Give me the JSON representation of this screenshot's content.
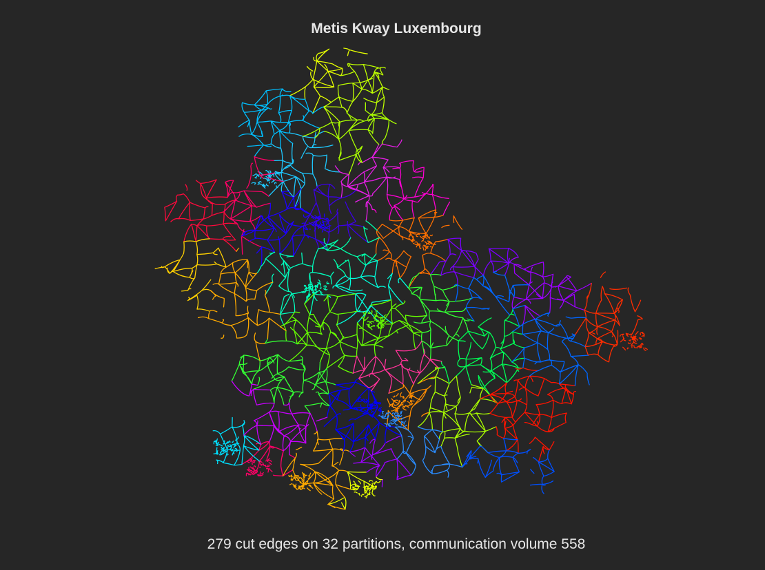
{
  "figure": {
    "title": "Metis Kway Luxembourg",
    "caption": "279 cut edges on 32 partitions, communication volume 558"
  },
  "graph": {
    "type": "road-network-partition",
    "partitions": 32,
    "cut_edges": 279,
    "communication_volume": 558
  },
  "palette": [
    "#e6ff00",
    "#bfff00",
    "#00bfff",
    "#1ec8ff",
    "#ff0a3c",
    "#ff0066",
    "#ff00d4",
    "#e61ee6",
    "#ff7000",
    "#ff8c00",
    "#1e00ff",
    "#3c00e6",
    "#7a00ff",
    "#9b00ff",
    "#00ffbf",
    "#00ffaa",
    "#00ffdd",
    "#aaff00",
    "#66ff00",
    "#33ff33",
    "#00ff55",
    "#ffd000",
    "#ffaa00",
    "#ff2d00",
    "#ff1400",
    "#0066ff",
    "#0050ff",
    "#0000ff",
    "#2a8cff",
    "#00e0ff",
    "#c800ff",
    "#ff3399"
  ]
}
